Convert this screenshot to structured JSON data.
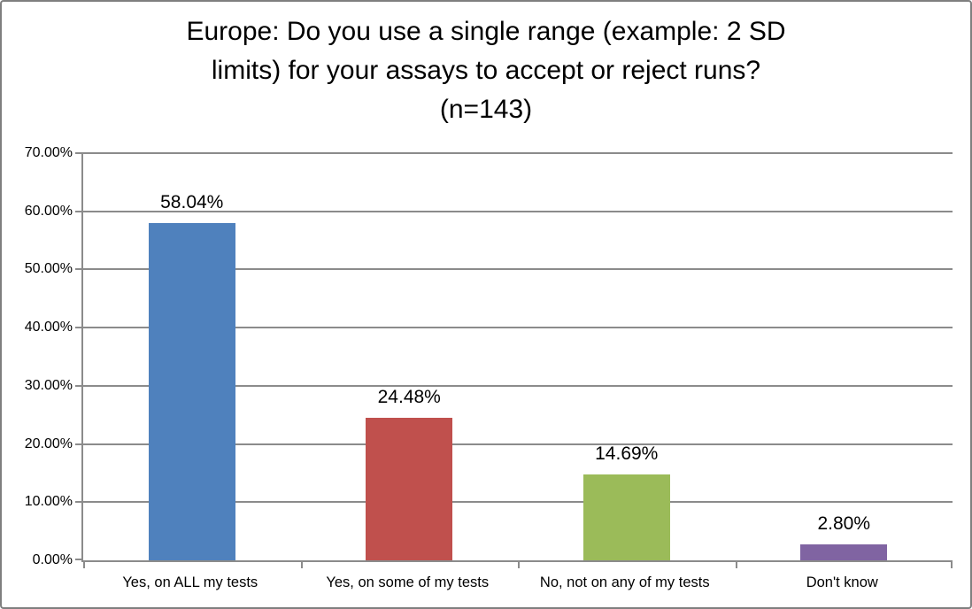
{
  "chart_data": {
    "type": "bar",
    "title": "Europe: Do you use a single range (example: 2 SD limits) for your assays to accept or reject runs? (n=143)",
    "title_lines": [
      "Europe: Do you use a single range (example: 2 SD",
      "limits) for your assays to accept or reject runs?",
      "(n=143)"
    ],
    "sample_size_note": "(n=143)",
    "categories": [
      "Yes, on ALL my tests",
      "Yes, on some of my tests",
      "No, not on any of my tests",
      "Don't know"
    ],
    "values": [
      58.04,
      24.48,
      14.69,
      2.8
    ],
    "value_labels": [
      "58.04%",
      "24.48%",
      "14.69%",
      "2.80%"
    ],
    "bar_colors": [
      "#4F81BD",
      "#C0504D",
      "#9BBB59",
      "#8064A2"
    ],
    "y_ticks": [
      "0.00%",
      "10.00%",
      "20.00%",
      "30.00%",
      "40.00%",
      "50.00%",
      "60.00%",
      "70.00%"
    ],
    "y_tick_values": [
      0,
      10,
      20,
      30,
      40,
      50,
      60,
      70
    ],
    "ylim": [
      0,
      70
    ],
    "xlabel": "",
    "ylabel": "",
    "grid": true,
    "legend_position": "none",
    "colors": {
      "gridline": "#8B8B8B",
      "axis": "#8B8B8B",
      "figure_border": "#7F7F7F",
      "background": "#FFFFFF",
      "label_text": "#000000"
    }
  }
}
